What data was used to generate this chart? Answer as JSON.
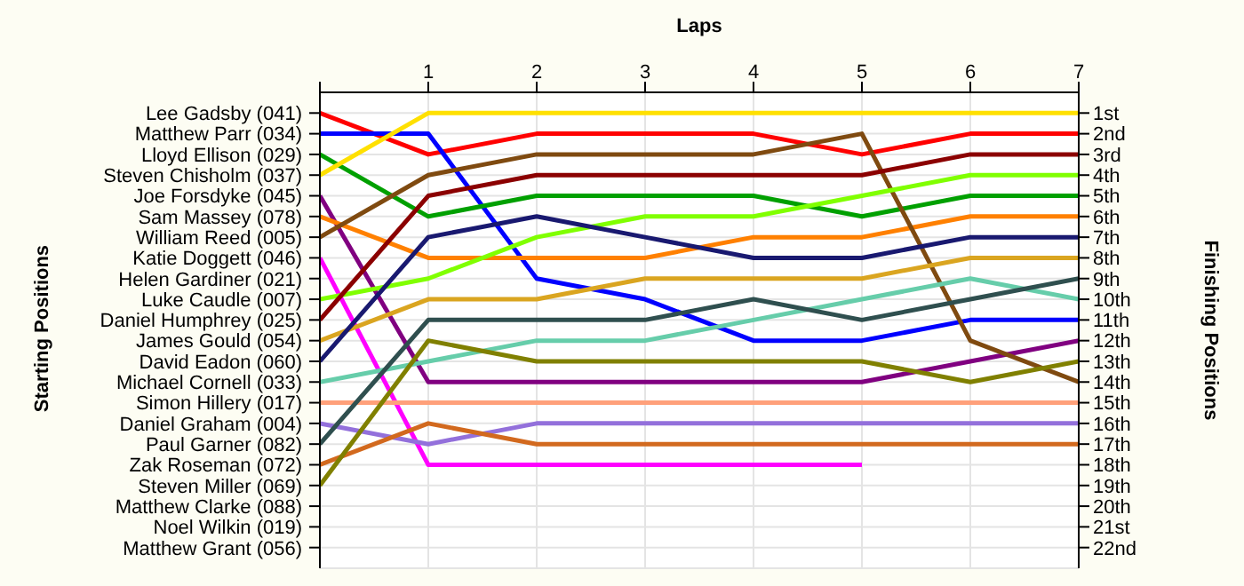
{
  "chart_data": {
    "type": "line",
    "xlabel": "Laps",
    "y2label": "Finishing Positions",
    "x": [
      0,
      1,
      2,
      3,
      4,
      5,
      6,
      7
    ],
    "xlim": [
      0,
      7
    ],
    "xticks": [
      {
        "value": 0,
        "label": null
      },
      1,
      2,
      3,
      4,
      5,
      6,
      7
    ],
    "y2lim": [
      23,
      0
    ],
    "y2ticks": [
      {
        "value": 1,
        "label": "1st"
      },
      {
        "value": 2,
        "label": "2nd"
      },
      {
        "value": 3,
        "label": "3rd"
      },
      {
        "value": 4,
        "label": "4th"
      },
      {
        "value": 5,
        "label": "5th"
      },
      {
        "value": 6,
        "label": "6th"
      },
      {
        "value": 7,
        "label": "7th"
      },
      {
        "value": 8,
        "label": "8th"
      },
      {
        "value": 9,
        "label": "9th"
      },
      {
        "value": 10,
        "label": "10th"
      },
      {
        "value": 11,
        "label": "11th"
      },
      {
        "value": 12,
        "label": "12th"
      },
      {
        "value": 13,
        "label": "13th"
      },
      {
        "value": 14,
        "label": "14th"
      },
      {
        "value": 15,
        "label": "15th"
      },
      {
        "value": 16,
        "label": "16th"
      },
      {
        "value": 17,
        "label": "17th"
      },
      {
        "value": 18,
        "label": "18th"
      },
      {
        "value": 19,
        "label": "19th"
      },
      {
        "value": 20,
        "label": "20th"
      },
      {
        "value": 21,
        "label": "21st"
      },
      {
        "value": 22,
        "label": "22nd"
      }
    ],
    "annotations": [
      "Lee Gadsby (041)",
      "Matthew Parr (034)",
      "Lloyd Ellison (029)",
      "Steven Chisholm (037)",
      "Joe Forsdyke (045)",
      "Sam Massey (078)",
      "William Reed (005)",
      "Katie Doggett (046)",
      "Helen Gardiner (021)",
      "Luke Caudle (007)",
      "Daniel Humphrey (025)",
      "James Gould (054)",
      "David Eadon (060)",
      "Michael Cornell (033)",
      "Simon Hillery (017)",
      "Daniel Graham (004)",
      "Paul Garner (082)",
      "Zak Roseman (072)",
      "Steven Miller (069)",
      "Matthew Clarke (088)",
      "Noel Wilkin (019)",
      "Matthew Grant (056)",
      "Starting Positions"
    ],
    "grid": true,
    "series": [
      {
        "color": "#ff0000",
        "axis": "y2",
        "values": [
          1,
          3,
          2,
          2,
          2,
          3,
          2,
          2
        ]
      },
      {
        "color": "#0000ff",
        "axis": "y2",
        "values": [
          2,
          2,
          9,
          10,
          12,
          12,
          11,
          11
        ]
      },
      {
        "color": "#00a000",
        "axis": "y2",
        "values": [
          3,
          6,
          5,
          5,
          5,
          6,
          5,
          5
        ]
      },
      {
        "color": "#ffe000",
        "axis": "y2",
        "values": [
          4,
          1,
          1,
          1,
          1,
          1,
          1,
          1
        ]
      },
      {
        "color": "#800080",
        "axis": "y2",
        "values": [
          5,
          14,
          14,
          14,
          14,
          14,
          13,
          12
        ]
      },
      {
        "color": "#ff8000",
        "axis": "y2",
        "values": [
          6,
          8,
          8,
          8,
          7,
          7,
          6,
          6
        ]
      },
      {
        "color": "#7f4a10",
        "axis": "y2",
        "values": [
          7,
          4,
          3,
          3,
          3,
          2,
          12,
          14
        ]
      },
      {
        "color": "#ff00ff",
        "axis": "y2",
        "values": [
          8,
          18,
          18,
          18,
          18,
          18,
          null,
          null
        ]
      },
      {
        "color": "#80ff00",
        "axis": "y2",
        "values": [
          10,
          9,
          7,
          6,
          6,
          5,
          4,
          4
        ]
      },
      {
        "color": "#8b0000",
        "axis": "y2",
        "values": [
          11,
          5,
          4,
          4,
          4,
          4,
          3,
          3
        ]
      },
      {
        "color": "#daa520",
        "axis": "y2",
        "values": [
          12,
          10,
          10,
          9,
          9,
          9,
          8,
          8
        ]
      },
      {
        "color": "#191970",
        "axis": "y2",
        "values": [
          13,
          7,
          6,
          7,
          8,
          8,
          7,
          7
        ]
      },
      {
        "color": "#66cdaa",
        "axis": "y2",
        "values": [
          14,
          13,
          12,
          12,
          11,
          10,
          9,
          10
        ]
      },
      {
        "color": "#ffa07a",
        "axis": "y2",
        "values": [
          15,
          15,
          15,
          15,
          15,
          15,
          15,
          15
        ]
      },
      {
        "color": "#9370db",
        "axis": "y2",
        "values": [
          16,
          17,
          16,
          16,
          16,
          16,
          16,
          16
        ]
      },
      {
        "color": "#2f4f4f",
        "axis": "y2",
        "values": [
          17,
          11,
          11,
          11,
          10,
          11,
          10,
          9
        ]
      },
      {
        "color": "#d2691e",
        "axis": "y2",
        "values": [
          18,
          16,
          17,
          17,
          17,
          17,
          17,
          17
        ]
      },
      {
        "color": "#808000",
        "axis": "y2",
        "values": [
          19,
          12,
          13,
          13,
          13,
          13,
          14,
          13
        ]
      }
    ]
  }
}
